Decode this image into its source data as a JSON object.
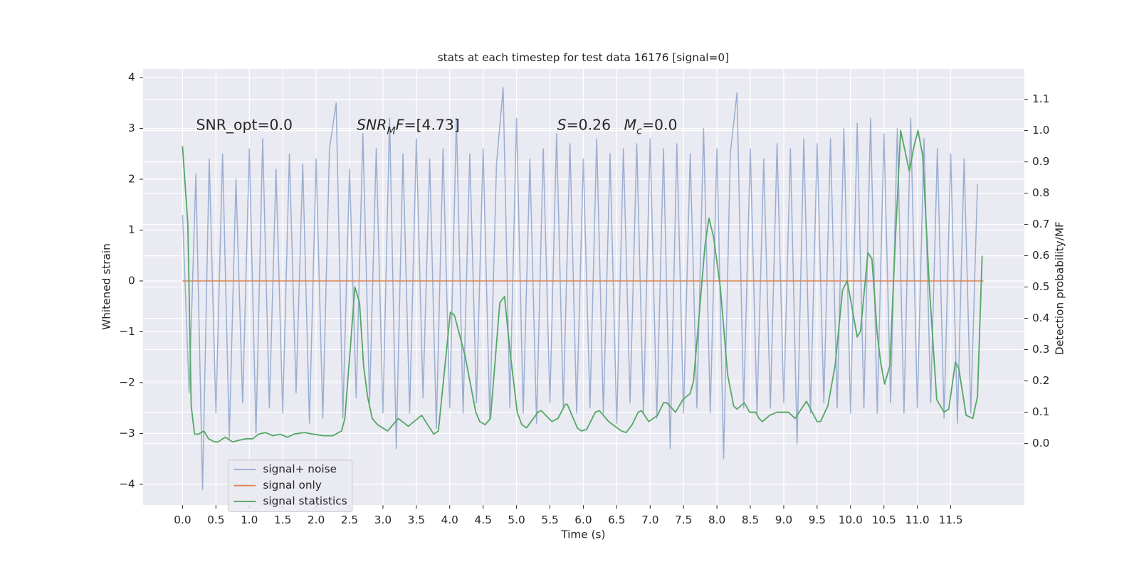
{
  "chart_data": {
    "type": "line",
    "title": "stats at each timestep for test data 16176 [signal=0]",
    "xlabel": "Time (s)",
    "ylabel": "Whitened strain",
    "y2label": "Detection probability/MF",
    "xlim": [
      -0.59,
      12.6
    ],
    "ylim": [
      -4.41,
      4.17
    ],
    "y2lim": [
      -0.197,
      1.197
    ],
    "xticks": [
      {
        "value": 0,
        "label": "0.0"
      },
      0.5,
      {
        "value": 1,
        "label": "1.0"
      },
      1.5,
      {
        "value": 2,
        "label": "2.0"
      },
      2.5,
      {
        "value": 3,
        "label": "3.0"
      },
      3.5,
      {
        "value": 4,
        "label": "4.0"
      },
      4.5,
      {
        "value": 5,
        "label": "5.0"
      },
      5.5,
      {
        "value": 6,
        "label": "6.0"
      },
      6.5,
      {
        "value": 7,
        "label": "7.0"
      },
      7.5,
      {
        "value": 8,
        "label": "8.0"
      },
      8.5,
      {
        "value": 9,
        "label": "9.0"
      },
      9.5,
      {
        "value": 10,
        "label": "10.0"
      },
      10.5,
      {
        "value": 11,
        "label": "11.0"
      },
      11.5
    ],
    "yticks": [
      {
        "value": -4,
        "label": "−4"
      },
      {
        "value": -3,
        "label": "−3"
      },
      {
        "value": -2,
        "label": "−2"
      },
      {
        "value": -1,
        "label": "−1"
      },
      0,
      1,
      2,
      3,
      4
    ],
    "y2ticks": [
      {
        "value": 0,
        "label": "0.0"
      },
      0.1,
      0.2,
      0.3,
      0.4,
      0.5,
      0.6,
      0.7,
      0.8,
      0.9,
      {
        "value": 1,
        "label": "1.0"
      },
      1.1
    ],
    "grid": true,
    "legend": "lower left",
    "annotations": [
      [
        {
          "text": "SNR_opt=0.0",
          "style": "normal"
        }
      ],
      [
        {
          "text": "SNR",
          "style": "italic"
        },
        {
          "text": "M",
          "style": "sub-italic"
        },
        {
          "text": "F",
          "style": "italic"
        },
        {
          "text": "=[4.73]",
          "style": "normal"
        }
      ],
      [
        {
          "text": "S",
          "style": "italic"
        },
        {
          "text": "=0.26",
          "style": "normal"
        }
      ],
      [
        {
          "text": "M",
          "style": "italic"
        },
        {
          "text": "c",
          "style": "sub-italic"
        },
        {
          "text": "=0.0",
          "style": "normal"
        }
      ]
    ],
    "series": [
      {
        "name": "signal+ noise",
        "color": "#4c72b0",
        "opacity": 0.5,
        "axis": "y",
        "x": [
          0,
          0.1,
          0.2,
          0.3,
          0.4,
          0.5,
          0.6,
          0.7,
          0.8,
          0.9,
          1,
          1.1,
          1.2,
          1.3,
          1.4,
          1.5,
          1.6,
          1.7,
          1.8,
          1.9,
          2,
          2.1,
          2.2,
          2.3,
          2.4,
          2.5,
          2.6,
          2.7,
          2.8,
          2.9,
          3,
          3.1,
          3.2,
          3.3,
          3.4,
          3.5,
          3.6,
          3.7,
          3.8,
          3.9,
          4,
          4.1,
          4.2,
          4.3,
          4.4,
          4.5,
          4.6,
          4.7,
          4.8,
          4.9,
          5,
          5.1,
          5.2,
          5.3,
          5.4,
          5.5,
          5.6,
          5.7,
          5.8,
          5.9,
          6,
          6.1,
          6.2,
          6.3,
          6.4,
          6.5,
          6.6,
          6.7,
          6.8,
          6.9,
          7,
          7.1,
          7.2,
          7.3,
          7.4,
          7.5,
          7.6,
          7.7,
          7.8,
          7.9,
          8,
          8.1,
          8.2,
          8.3,
          8.4,
          8.5,
          8.6,
          8.7,
          8.8,
          8.9,
          9,
          9.1,
          9.2,
          9.3,
          9.4,
          9.5,
          9.6,
          9.7,
          9.8,
          9.9,
          10,
          10.1,
          10.2,
          10.3,
          10.4,
          10.5,
          10.6,
          10.7,
          10.8,
          10.9,
          11,
          11.1,
          11.2,
          11.3,
          11.4,
          11.5,
          11.6,
          11.7,
          11.8,
          11.9
        ],
        "values": [
          1.3,
          -2.2,
          2.1,
          -4.1,
          2.4,
          -2.6,
          2.5,
          -3.1,
          2.0,
          -2.4,
          2.6,
          -3.0,
          2.8,
          -2.5,
          2.2,
          -2.6,
          2.5,
          -2.2,
          2.3,
          -2.8,
          2.4,
          -2.7,
          2.6,
          3.5,
          -2.7,
          2.2,
          -2.3,
          2.9,
          -2.4,
          2.6,
          -2.6,
          3.2,
          -3.3,
          2.5,
          -2.6,
          2.8,
          -2.3,
          2.4,
          -2.9,
          2.6,
          -2.5,
          3.2,
          -2.6,
          2.5,
          -2.4,
          2.6,
          -2.7,
          2.3,
          3.8,
          -2.5,
          3.2,
          -2.6,
          2.4,
          -2.8,
          2.6,
          -2.4,
          2.9,
          -2.5,
          2.7,
          -2.6,
          2.4,
          -2.5,
          2.8,
          -2.6,
          2.5,
          -2.8,
          2.6,
          -2.4,
          2.7,
          -2.6,
          2.8,
          -2.7,
          2.6,
          -3.3,
          2.7,
          -2.6,
          2.5,
          -2.5,
          3.0,
          -2.6,
          2.6,
          -3.5,
          2.5,
          3.7,
          -2.5,
          2.6,
          -2.6,
          2.4,
          -2.5,
          2.7,
          -2.4,
          2.6,
          -3.2,
          2.8,
          -2.6,
          2.7,
          -2.4,
          2.8,
          -2.5,
          3.0,
          -2.6,
          3.1,
          -2.5,
          3.2,
          -2.6,
          2.9,
          -2.4,
          3.0,
          -2.6,
          3.2,
          -2.5,
          2.8,
          -2.4,
          2.6,
          -2.7,
          2.5,
          -2.8,
          2.4,
          -2.6,
          1.9
        ]
      },
      {
        "name": "signal only",
        "color": "#dd8452",
        "opacity": 1,
        "axis": "y",
        "x": [
          0,
          11.99
        ],
        "values": [
          0,
          0
        ]
      },
      {
        "name": "signal statistics",
        "color": "#55a868",
        "opacity": 1,
        "axis": "y2",
        "x": [
          0,
          0.08,
          0.13,
          0.18,
          0.24,
          0.32,
          0.39,
          0.48,
          0.53,
          0.64,
          0.75,
          0.84,
          0.95,
          1.05,
          1.14,
          1.24,
          1.35,
          1.46,
          1.57,
          1.67,
          1.82,
          1.95,
          2.11,
          2.25,
          2.38,
          2.43,
          2.51,
          2.58,
          2.65,
          2.71,
          2.77,
          2.84,
          2.92,
          3.07,
          3.23,
          3.38,
          3.58,
          3.76,
          3.83,
          4.01,
          4.07,
          4.23,
          4.39,
          4.45,
          4.53,
          4.61,
          4.75,
          4.82,
          4.9,
          5.01,
          5.08,
          5.15,
          5.32,
          5.37,
          5.53,
          5.62,
          5.73,
          5.76,
          5.91,
          5.97,
          6.05,
          6.18,
          6.24,
          6.38,
          6.57,
          6.64,
          6.73,
          6.82,
          6.87,
          6.98,
          7.11,
          7.2,
          7.25,
          7.38,
          7.49,
          7.6,
          7.65,
          7.73,
          7.82,
          7.88,
          7.95,
          8.05,
          8.16,
          8.25,
          8.3,
          8.41,
          8.49,
          8.58,
          8.63,
          8.68,
          8.79,
          8.9,
          9.07,
          9.17,
          9.34,
          9.5,
          9.55,
          9.66,
          9.77,
          9.88,
          9.95,
          10.1,
          10.15,
          10.26,
          10.32,
          10.4,
          10.45,
          10.51,
          10.59,
          10.66,
          10.75,
          10.8,
          10.88,
          10.95,
          11.01,
          11.08,
          11.18,
          11.29,
          11.4,
          11.47,
          11.57,
          11.62,
          11.73,
          11.83,
          11.9,
          11.97
        ],
        "values": [
          0.95,
          0.7,
          0.12,
          0.03,
          0.03,
          0.04,
          0.015,
          0.005,
          0.005,
          0.02,
          0.005,
          0.01,
          0.015,
          0.015,
          0.03,
          0.035,
          0.025,
          0.03,
          0.02,
          0.03,
          0.035,
          0.03,
          0.025,
          0.025,
          0.04,
          0.08,
          0.3,
          0.5,
          0.45,
          0.25,
          0.15,
          0.08,
          0.06,
          0.04,
          0.08,
          0.055,
          0.09,
          0.03,
          0.04,
          0.42,
          0.41,
          0.28,
          0.1,
          0.07,
          0.06,
          0.08,
          0.45,
          0.47,
          0.3,
          0.1,
          0.06,
          0.05,
          0.1,
          0.105,
          0.07,
          0.08,
          0.125,
          0.125,
          0.05,
          0.04,
          0.045,
          0.1,
          0.105,
          0.07,
          0.04,
          0.035,
          0.06,
          0.1,
          0.105,
          0.07,
          0.09,
          0.13,
          0.13,
          0.1,
          0.14,
          0.16,
          0.2,
          0.4,
          0.63,
          0.72,
          0.66,
          0.5,
          0.22,
          0.12,
          0.11,
          0.13,
          0.1,
          0.1,
          0.08,
          0.07,
          0.09,
          0.1,
          0.1,
          0.08,
          0.135,
          0.07,
          0.07,
          0.12,
          0.25,
          0.49,
          0.52,
          0.34,
          0.36,
          0.61,
          0.59,
          0.35,
          0.26,
          0.19,
          0.25,
          0.6,
          1.0,
          0.95,
          0.87,
          0.95,
          1.0,
          0.92,
          0.5,
          0.14,
          0.1,
          0.11,
          0.26,
          0.24,
          0.09,
          0.08,
          0.15,
          0.6
        ]
      }
    ]
  }
}
